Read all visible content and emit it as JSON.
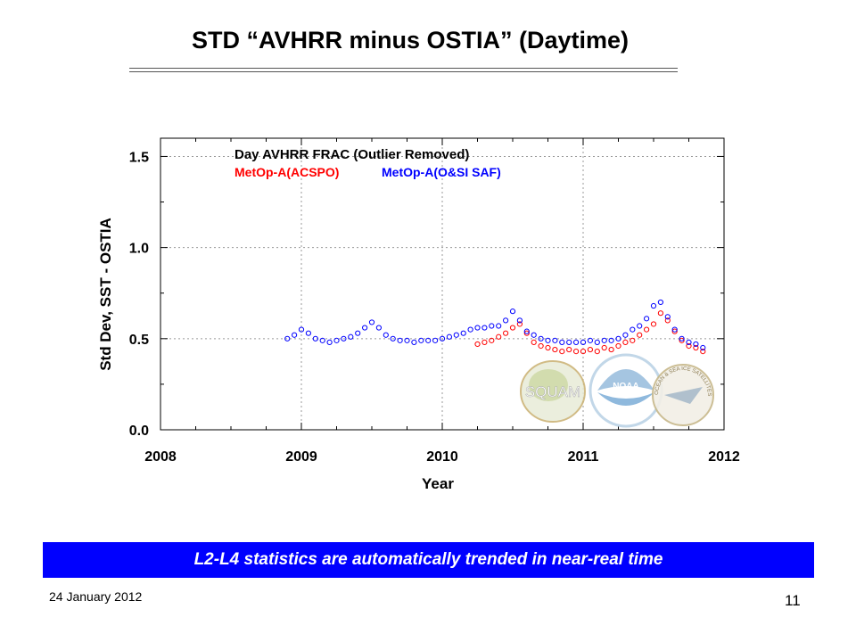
{
  "slide": {
    "title": "STD “AVHRR minus OSTIA” (Daytime)",
    "banner": "L2-L4 statistics are automatically trended in near-real time",
    "footer_date": "24 January 2012",
    "page_number": "11"
  },
  "logos": {
    "squam_text": "SQUAM",
    "noaa_text": "NOAA",
    "star_text": "OCEAN & SEA ICE SATELLITES"
  },
  "chart_data": {
    "type": "scatter",
    "title": "",
    "xlabel": "Year",
    "ylabel": "Std Dev,  SST - OSTIA",
    "xlim": [
      2008,
      2012
    ],
    "ylim": [
      0.0,
      1.6
    ],
    "xticks": [
      "2008",
      "2009",
      "2010",
      "2011",
      "2012"
    ],
    "yticks": [
      "0.0",
      "0.5",
      "1.0",
      "1.5"
    ],
    "grid": true,
    "legend": {
      "position": "top-left",
      "title": "Day AVHRR FRAC (Outlier Removed)",
      "entries": [
        "MetOp-A(ACSPO)",
        "MetOp-A(O&SI SAF)"
      ]
    },
    "series": [
      {
        "name": "MetOp-A(ACSPO)",
        "color": "#ff0000",
        "x": [
          2010.25,
          2010.3,
          2010.35,
          2010.4,
          2010.45,
          2010.5,
          2010.55,
          2010.6,
          2010.65,
          2010.7,
          2010.75,
          2010.8,
          2010.85,
          2010.9,
          2010.95,
          2011.0,
          2011.05,
          2011.1,
          2011.15,
          2011.2,
          2011.25,
          2011.3,
          2011.35,
          2011.4,
          2011.45,
          2011.5,
          2011.55,
          2011.6,
          2011.65,
          2011.7,
          2011.75,
          2011.8,
          2011.85
        ],
        "y": [
          0.47,
          0.48,
          0.49,
          0.51,
          0.53,
          0.56,
          0.58,
          0.53,
          0.48,
          0.46,
          0.45,
          0.44,
          0.43,
          0.44,
          0.43,
          0.43,
          0.44,
          0.43,
          0.45,
          0.44,
          0.46,
          0.48,
          0.49,
          0.52,
          0.55,
          0.58,
          0.64,
          0.6,
          0.54,
          0.49,
          0.46,
          0.45,
          0.43
        ]
      },
      {
        "name": "MetOp-A(O&SI SAF)",
        "color": "#0000ff",
        "x": [
          2008.9,
          2008.95,
          2009.0,
          2009.05,
          2009.1,
          2009.15,
          2009.2,
          2009.25,
          2009.3,
          2009.35,
          2009.4,
          2009.45,
          2009.5,
          2009.55,
          2009.6,
          2009.65,
          2009.7,
          2009.75,
          2009.8,
          2009.85,
          2009.9,
          2009.95,
          2010.0,
          2010.05,
          2010.1,
          2010.15,
          2010.2,
          2010.25,
          2010.3,
          2010.35,
          2010.4,
          2010.45,
          2010.5,
          2010.55,
          2010.6,
          2010.65,
          2010.7,
          2010.75,
          2010.8,
          2010.85,
          2010.9,
          2010.95,
          2011.0,
          2011.05,
          2011.1,
          2011.15,
          2011.2,
          2011.25,
          2011.3,
          2011.35,
          2011.4,
          2011.45,
          2011.5,
          2011.55,
          2011.6,
          2011.65,
          2011.7,
          2011.75,
          2011.8,
          2011.85
        ],
        "y": [
          0.5,
          0.52,
          0.55,
          0.53,
          0.5,
          0.49,
          0.48,
          0.49,
          0.5,
          0.51,
          0.53,
          0.56,
          0.59,
          0.56,
          0.52,
          0.5,
          0.49,
          0.49,
          0.48,
          0.49,
          0.49,
          0.49,
          0.5,
          0.51,
          0.52,
          0.53,
          0.55,
          0.56,
          0.56,
          0.57,
          0.57,
          0.6,
          0.65,
          0.6,
          0.54,
          0.52,
          0.5,
          0.49,
          0.49,
          0.48,
          0.48,
          0.48,
          0.48,
          0.49,
          0.48,
          0.49,
          0.49,
          0.5,
          0.52,
          0.55,
          0.57,
          0.61,
          0.68,
          0.7,
          0.62,
          0.55,
          0.5,
          0.48,
          0.47,
          0.45
        ]
      }
    ]
  }
}
